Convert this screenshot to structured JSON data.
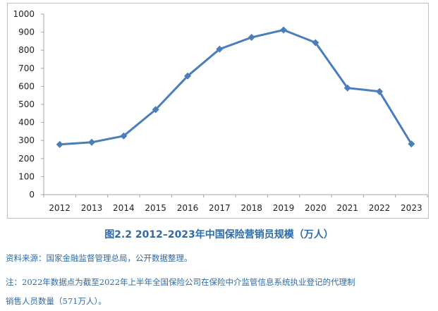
{
  "chart_data": {
    "type": "line",
    "categories": [
      "2012",
      "2013",
      "2014",
      "2015",
      "2016",
      "2017",
      "2018",
      "2019",
      "2020",
      "2021",
      "2022",
      "2023"
    ],
    "series": [
      {
        "values": [
          278,
          290,
          325,
          471,
          657,
          806,
          871,
          912,
          842,
          591,
          571,
          281
        ]
      }
    ],
    "yticks": [
      "0",
      "100",
      "200",
      "300",
      "400",
      "500",
      "600",
      "700",
      "800",
      "900",
      "1000"
    ],
    "ylim": [
      0,
      1000
    ],
    "grid": false,
    "legend": "none",
    "line_color": "#4a7ebb",
    "marker": "diamond"
  },
  "caption": "图2.2 2012–2023年中国保险营销员规模（万人）",
  "source_note": "资料来源：国家金融监督管理总局，公开数据整理。",
  "footnote": {
    "line1": "注：2022年数据点为截至2022年上半年全国保险公司在保险中介监管信息系统执业登记的代理制",
    "line2": "销售人员数量（571万人）。"
  },
  "colors": {
    "caption": "#2e6aa5",
    "axis": "#a6a6a6",
    "frame": "#bfbfbf"
  }
}
